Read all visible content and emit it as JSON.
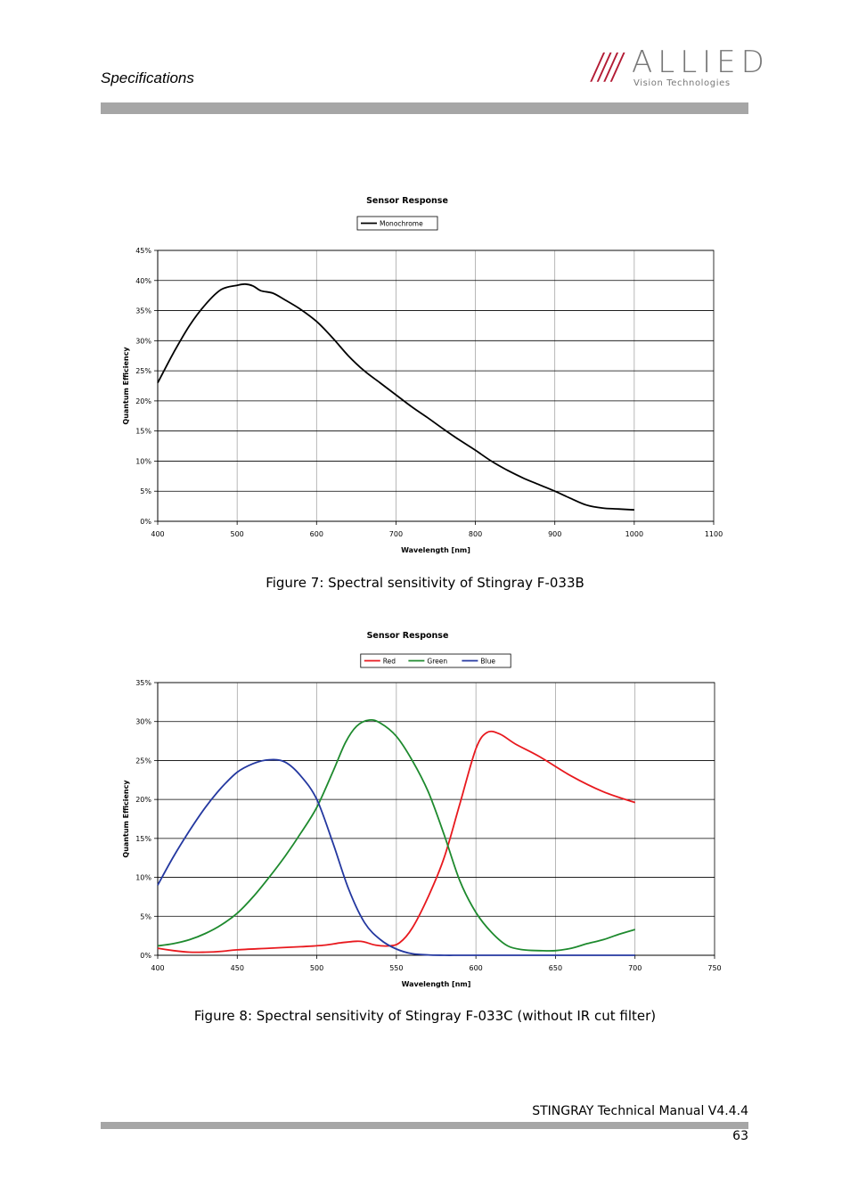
{
  "header": {
    "section_title": "Specifications"
  },
  "logo": {
    "brand_word": "ALLIED",
    "brand_sub": "Vision Technologies",
    "accent_color": "#b31b34",
    "text_color": "#777777"
  },
  "figure1": {
    "caption": "Figure 7: Spectral sensitivity of Stingray F-033B"
  },
  "figure2": {
    "caption": "Figure 8: Spectral sensitivity of Stingray F-033C (without IR cut filter)"
  },
  "footer": {
    "manual_title": "STINGRAY Technical Manual V4.4.4",
    "page_number": "63"
  },
  "chart_data": [
    {
      "type": "line",
      "title": "Sensor Response",
      "xlabel": "Wavelength [nm]",
      "ylabel": "Quantum Efficiency",
      "xlim": [
        400,
        1100
      ],
      "ylim": [
        0,
        45
      ],
      "x_ticks": [
        400,
        500,
        600,
        700,
        800,
        900,
        1000,
        1100
      ],
      "y_ticks": [
        0,
        5,
        10,
        15,
        20,
        25,
        30,
        35,
        40,
        45
      ],
      "y_tick_suffix": "%",
      "grid": {
        "horizontal": true,
        "vertical": true
      },
      "legend_position": "top-center",
      "series": [
        {
          "name": "Monochrome",
          "color": "#000000",
          "points": [
            [
              400,
              23
            ],
            [
              420,
              28
            ],
            [
              440,
              32.5
            ],
            [
              460,
              36
            ],
            [
              480,
              38.5
            ],
            [
              500,
              39.2
            ],
            [
              510,
              39.4
            ],
            [
              520,
              39.1
            ],
            [
              530,
              38.3
            ],
            [
              545,
              37.9
            ],
            [
              560,
              36.8
            ],
            [
              580,
              35.2
            ],
            [
              600,
              33.2
            ],
            [
              620,
              30.5
            ],
            [
              640,
              27.5
            ],
            [
              660,
              25
            ],
            [
              680,
              23
            ],
            [
              700,
              21
            ],
            [
              720,
              19
            ],
            [
              740,
              17.2
            ],
            [
              760,
              15.3
            ],
            [
              780,
              13.5
            ],
            [
              800,
              11.8
            ],
            [
              820,
              10
            ],
            [
              840,
              8.5
            ],
            [
              860,
              7.2
            ],
            [
              880,
              6.1
            ],
            [
              900,
              5
            ],
            [
              920,
              3.8
            ],
            [
              940,
              2.7
            ],
            [
              960,
              2.2
            ],
            [
              980,
              2.05
            ],
            [
              1000,
              1.9
            ]
          ]
        }
      ]
    },
    {
      "type": "line",
      "title": "Sensor Response",
      "xlabel": "Wavelength [nm]",
      "ylabel": "Quantum Efficiency",
      "xlim": [
        400,
        750
      ],
      "ylim": [
        0,
        35
      ],
      "x_ticks": [
        400,
        450,
        500,
        550,
        600,
        650,
        700,
        750
      ],
      "y_ticks": [
        0,
        5,
        10,
        15,
        20,
        25,
        30,
        35
      ],
      "y_tick_suffix": "%",
      "grid": {
        "horizontal": true,
        "vertical": true
      },
      "legend_position": "top-center",
      "series": [
        {
          "name": "Red",
          "color": "#e8191e",
          "points": [
            [
              400,
              0.9
            ],
            [
              410,
              0.6
            ],
            [
              420,
              0.4
            ],
            [
              430,
              0.4
            ],
            [
              440,
              0.5
            ],
            [
              450,
              0.7
            ],
            [
              470,
              0.9
            ],
            [
              490,
              1.1
            ],
            [
              505,
              1.3
            ],
            [
              515,
              1.6
            ],
            [
              525,
              1.8
            ],
            [
              530,
              1.7
            ],
            [
              537,
              1.3
            ],
            [
              545,
              1.2
            ],
            [
              552,
              1.6
            ],
            [
              560,
              3.5
            ],
            [
              570,
              7.5
            ],
            [
              580,
              12.5
            ],
            [
              590,
              19.5
            ],
            [
              600,
              26.5
            ],
            [
              607,
              28.6
            ],
            [
              615,
              28.4
            ],
            [
              625,
              27.1
            ],
            [
              640,
              25.5
            ],
            [
              660,
              23
            ],
            [
              680,
              21
            ],
            [
              700,
              19.6
            ]
          ]
        },
        {
          "name": "Green",
          "color": "#1e8a2e",
          "points": [
            [
              400,
              1.2
            ],
            [
              410,
              1.5
            ],
            [
              420,
              2
            ],
            [
              430,
              2.8
            ],
            [
              440,
              3.9
            ],
            [
              450,
              5.4
            ],
            [
              460,
              7.5
            ],
            [
              470,
              10
            ],
            [
              480,
              12.7
            ],
            [
              490,
              15.7
            ],
            [
              500,
              19
            ],
            [
              510,
              23.5
            ],
            [
              518,
              27.3
            ],
            [
              525,
              29.4
            ],
            [
              533,
              30.2
            ],
            [
              540,
              29.8
            ],
            [
              550,
              28.1
            ],
            [
              560,
              25
            ],
            [
              570,
              21
            ],
            [
              580,
              15.5
            ],
            [
              590,
              9.5
            ],
            [
              600,
              5.5
            ],
            [
              610,
              2.9
            ],
            [
              620,
              1.2
            ],
            [
              630,
              0.7
            ],
            [
              640,
              0.6
            ],
            [
              650,
              0.6
            ],
            [
              660,
              0.9
            ],
            [
              670,
              1.5
            ],
            [
              680,
              2
            ],
            [
              690,
              2.7
            ],
            [
              700,
              3.3
            ]
          ]
        },
        {
          "name": "Blue",
          "color": "#2438a0",
          "points": [
            [
              400,
              9
            ],
            [
              410,
              12.7
            ],
            [
              420,
              16
            ],
            [
              430,
              19
            ],
            [
              440,
              21.5
            ],
            [
              450,
              23.5
            ],
            [
              460,
              24.6
            ],
            [
              470,
              25.1
            ],
            [
              480,
              24.8
            ],
            [
              490,
              23
            ],
            [
              500,
              20
            ],
            [
              510,
              14.5
            ],
            [
              520,
              8.5
            ],
            [
              530,
              4.2
            ],
            [
              540,
              2
            ],
            [
              550,
              0.8
            ],
            [
              560,
              0.2
            ],
            [
              570,
              0.05
            ],
            [
              580,
              0
            ],
            [
              590,
              0
            ],
            [
              600,
              0
            ],
            [
              620,
              0
            ],
            [
              650,
              0
            ],
            [
              680,
              0
            ],
            [
              700,
              0
            ]
          ]
        }
      ]
    }
  ]
}
